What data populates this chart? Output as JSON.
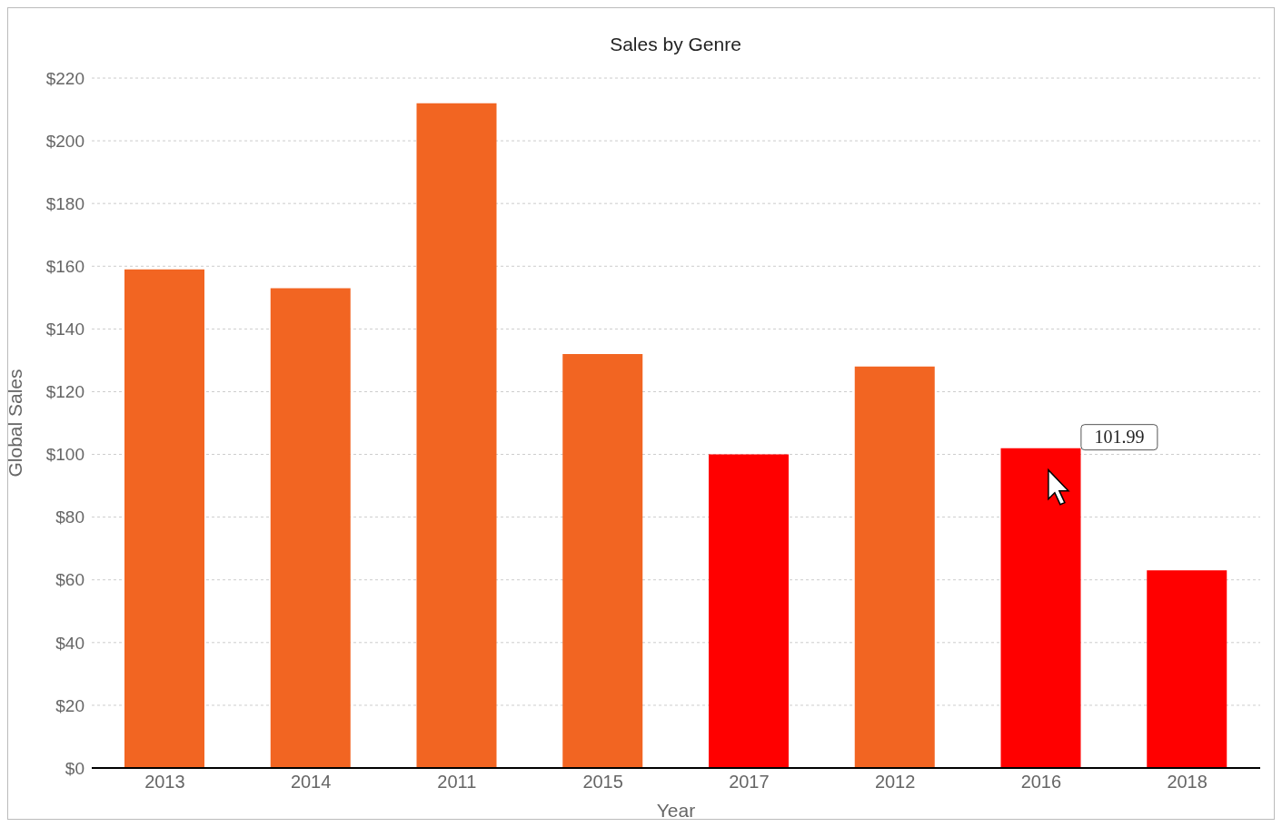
{
  "chart_data": {
    "type": "bar",
    "title": "Sales by Genre",
    "xlabel": "Year",
    "ylabel": "Global Sales",
    "categories": [
      "2013",
      "2014",
      "2011",
      "2015",
      "2017",
      "2012",
      "2016",
      "2018"
    ],
    "values": [
      159,
      153,
      212,
      132,
      100,
      128,
      101.99,
      63
    ],
    "colors": [
      "#f26522",
      "#f26522",
      "#f26522",
      "#f26522",
      "#ff0000",
      "#f26522",
      "#ff0000",
      "#ff0000"
    ],
    "ylim": [
      0,
      220
    ],
    "yticks": [
      {
        "value": 0,
        "label": "$0"
      },
      {
        "value": 20,
        "label": "$20"
      },
      {
        "value": 40,
        "label": "$40"
      },
      {
        "value": 60,
        "label": "$60"
      },
      {
        "value": 80,
        "label": "$80"
      },
      {
        "value": 100,
        "label": "$100"
      },
      {
        "value": 120,
        "label": "$120"
      },
      {
        "value": 140,
        "label": "$140"
      },
      {
        "value": 160,
        "label": "$160"
      },
      {
        "value": 180,
        "label": "$180"
      },
      {
        "value": 200,
        "label": "$200"
      },
      {
        "value": 220,
        "label": "$220"
      }
    ],
    "grid": "y",
    "annotations": [
      {
        "text": "101.99",
        "x": "2016",
        "y": 101.99
      }
    ]
  }
}
